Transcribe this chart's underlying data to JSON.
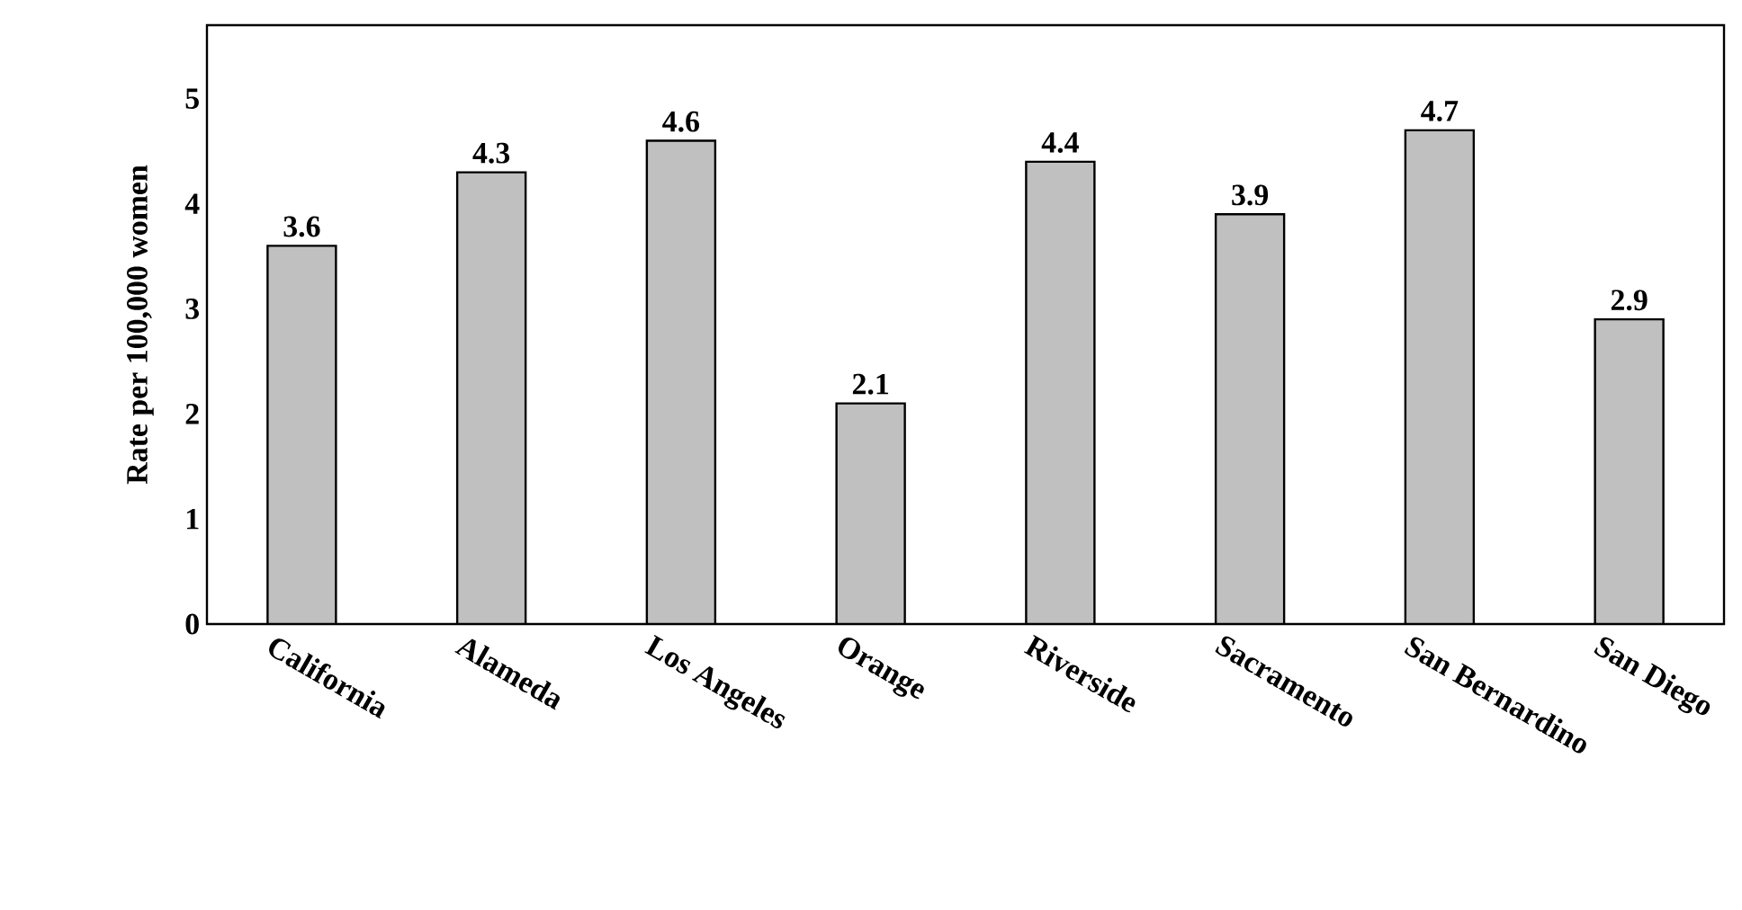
{
  "chart_data": {
    "type": "bar",
    "ylabel": "Rate per 100,000 women",
    "categories": [
      "California",
      "Alameda",
      "Los Angeles",
      "Orange",
      "Riverside",
      "Sacramento",
      "San Bernardino",
      "San Diego"
    ],
    "values": [
      3.6,
      4.3,
      4.6,
      2.1,
      4.4,
      3.9,
      4.7,
      2.9
    ],
    "color": "#c0c0c0",
    "ylim": [
      0,
      5.7
    ],
    "yticks": [
      0,
      1,
      2,
      3,
      4,
      5
    ],
    "data_labels": true
  }
}
